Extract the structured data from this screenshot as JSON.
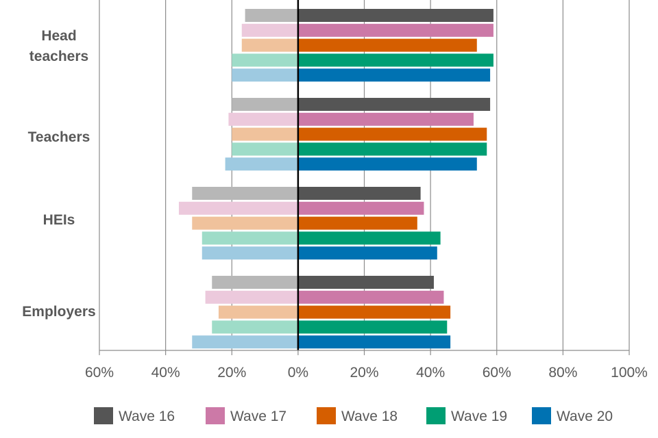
{
  "chart_data": {
    "type": "bar",
    "orientation": "horizontal-diverging",
    "categories": [
      "Head teachers",
      "Teachers",
      "HEIs",
      "Employers"
    ],
    "category_lines": [
      [
        "Head",
        "teachers"
      ],
      [
        "Teachers"
      ],
      [
        "HEIs"
      ],
      [
        "Employers"
      ]
    ],
    "series": [
      {
        "name": "Wave 16",
        "color": "#555555",
        "light_color": "#b7b7b7",
        "negative": [
          16,
          20,
          32,
          26
        ],
        "positive": [
          59,
          58,
          37,
          41
        ]
      },
      {
        "name": "Wave 17",
        "color": "#cc79a7",
        "light_color": "#ecc9dc",
        "negative": [
          17,
          21,
          36,
          28
        ],
        "positive": [
          59,
          53,
          38,
          44
        ]
      },
      {
        "name": "Wave 18",
        "color": "#d55e00",
        "light_color": "#f0c29c",
        "negative": [
          17,
          20,
          32,
          24
        ],
        "positive": [
          54,
          57,
          36,
          46
        ]
      },
      {
        "name": "Wave 19",
        "color": "#009e73",
        "light_color": "#9edcc8",
        "negative": [
          20,
          20,
          29,
          26
        ],
        "positive": [
          59,
          57,
          43,
          45
        ]
      },
      {
        "name": "Wave 20",
        "color": "#0072b2",
        "light_color": "#9ecae1",
        "negative": [
          20,
          22,
          29,
          32
        ],
        "positive": [
          58,
          54,
          42,
          46
        ]
      }
    ],
    "x_ticks": [
      "60%",
      "40%",
      "20%",
      "0%",
      "20%",
      "40%",
      "60%",
      "80%",
      "100%"
    ],
    "xlim": [
      -60,
      100
    ],
    "grid": "vertical",
    "legend_position": "bottom"
  }
}
